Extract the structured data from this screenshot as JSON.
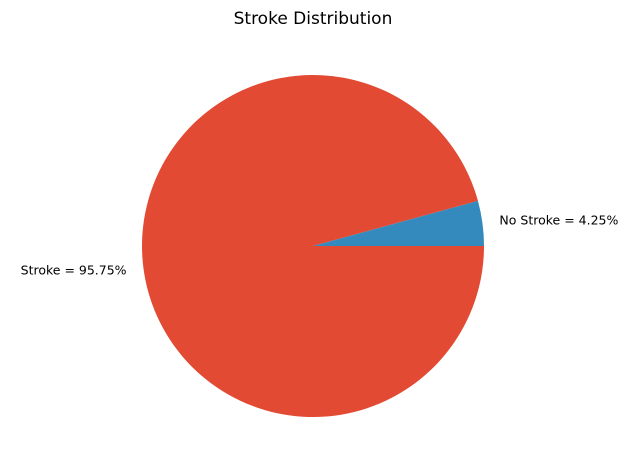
{
  "chart_data": {
    "type": "pie",
    "title": "Stroke Distribution",
    "slices": [
      {
        "label": "Stroke = 95.75%",
        "value": 95.75,
        "color": "#E24A33"
      },
      {
        "label": "No Stroke = 4.25%",
        "value": 4.25,
        "color": "#348ABD"
      }
    ],
    "start_angle": "clockwise from 3 o'clock",
    "legend": "none"
  }
}
